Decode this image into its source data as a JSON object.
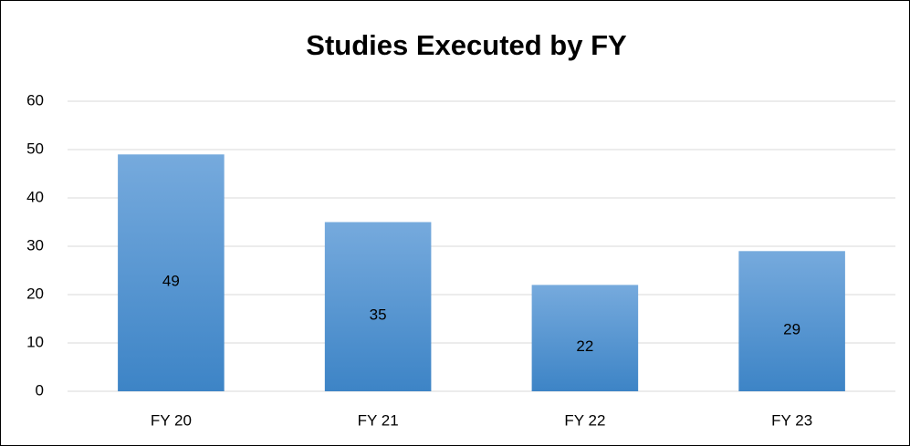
{
  "chart_data": {
    "type": "bar",
    "title": "Studies Executed by FY",
    "categories": [
      "FY 20",
      "FY 21",
      "FY 22",
      "FY 23"
    ],
    "values": [
      49,
      35,
      22,
      29
    ],
    "color": "#5b9bd5",
    "ylim": [
      0,
      60
    ],
    "yticks": [
      0,
      10,
      20,
      30,
      40,
      50,
      60
    ],
    "grid": true
  }
}
